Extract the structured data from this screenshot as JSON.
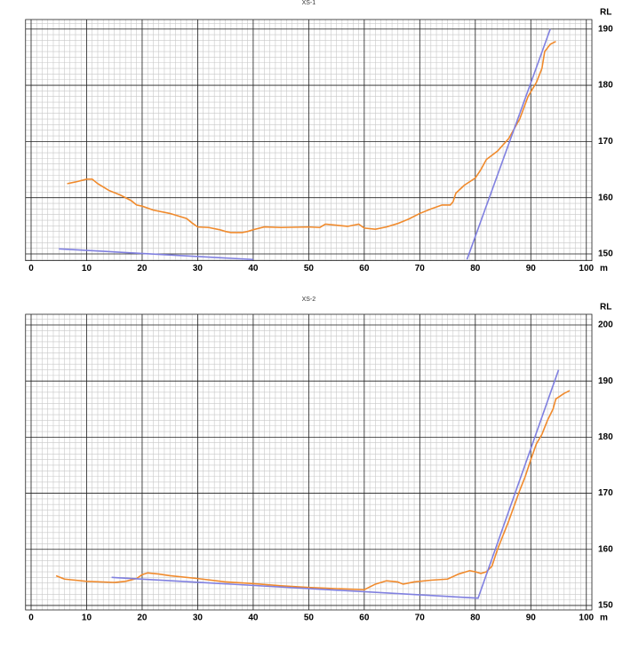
{
  "chart_data": [
    {
      "type": "line",
      "title": "XS-1",
      "xlabel": "m",
      "ylabel": "RL",
      "xlim": [
        -1,
        101
      ],
      "ylim": [
        148.8,
        191.7
      ],
      "xticks": [
        0,
        10,
        20,
        30,
        40,
        50,
        60,
        70,
        80,
        90,
        100
      ],
      "yticks": [
        150,
        160,
        170,
        180,
        190
      ],
      "grid": true,
      "minor_step": 1,
      "series": [
        {
          "color": "#f08a2c",
          "x": [
            6.5,
            8,
            10,
            11,
            12,
            14,
            16,
            18,
            19,
            20,
            22,
            25,
            28,
            29,
            30,
            32,
            34,
            35,
            36,
            38,
            39,
            40,
            42,
            45,
            50,
            52,
            53,
            55,
            57,
            59,
            60,
            62,
            64,
            66,
            68,
            70,
            72,
            74,
            75.5,
            76,
            76.5,
            78,
            80,
            81,
            82,
            84,
            86,
            88,
            89.5,
            91,
            92,
            92.5,
            93.5,
            94.5
          ],
          "values": [
            162.5,
            162.8,
            163.3,
            163.3,
            162.5,
            161.3,
            160.5,
            159.5,
            158.7,
            158.5,
            157.8,
            157.2,
            156.3,
            155.5,
            154.8,
            154.7,
            154.3,
            154.0,
            153.8,
            153.8,
            154.0,
            154.3,
            154.8,
            154.7,
            154.8,
            154.7,
            155.3,
            155.1,
            154.9,
            155.3,
            154.6,
            154.4,
            154.8,
            155.4,
            156.2,
            157.2,
            158.0,
            158.7,
            158.7,
            159.3,
            160.8,
            162.2,
            163.5,
            165.0,
            166.8,
            168.3,
            170.5,
            174.0,
            178.0,
            180.5,
            183.0,
            186.0,
            187.3,
            187.8
          ]
        },
        {
          "color": "#8080e0",
          "x": [
            5,
            40
          ],
          "values": [
            150.9,
            149.0
          ]
        },
        {
          "color": "#8080e0",
          "x": [
            78.5,
            93.5
          ],
          "values": [
            149.0,
            190.0
          ]
        }
      ]
    },
    {
      "type": "line",
      "title": "XS-2",
      "xlabel": "m",
      "ylabel": "RL",
      "xlim": [
        -1,
        101
      ],
      "ylim": [
        149.2,
        201.9
      ],
      "xticks": [
        0,
        10,
        20,
        30,
        40,
        50,
        60,
        70,
        80,
        90,
        100
      ],
      "yticks": [
        150,
        160,
        170,
        180,
        190,
        200
      ],
      "grid": true,
      "minor_step": 1,
      "series": [
        {
          "color": "#f08a2c",
          "x": [
            4.5,
            6,
            8,
            10,
            15,
            17,
            19,
            20,
            21,
            23,
            25,
            30,
            35,
            40,
            45,
            50,
            55,
            60,
            62,
            64,
            66,
            67,
            69,
            72,
            75,
            77,
            79,
            80,
            81,
            82,
            83,
            84,
            86,
            88,
            89,
            90,
            91,
            92,
            93,
            94,
            94.5,
            96,
            97
          ],
          "values": [
            155.3,
            154.7,
            154.5,
            154.3,
            154.1,
            154.3,
            154.8,
            155.5,
            155.8,
            155.6,
            155.3,
            154.8,
            154.2,
            153.9,
            153.5,
            153.2,
            153.0,
            152.8,
            153.8,
            154.4,
            154.2,
            153.8,
            154.2,
            154.5,
            154.7,
            155.6,
            156.2,
            156.0,
            155.7,
            156.0,
            157.0,
            160.0,
            165.0,
            170.5,
            173.0,
            176.0,
            178.8,
            180.5,
            183.0,
            185.0,
            186.8,
            187.8,
            188.3
          ]
        },
        {
          "color": "#8080e0",
          "x": [
            14.5,
            80.5,
            95
          ],
          "values": [
            155.0,
            151.3,
            192.0
          ]
        }
      ]
    }
  ]
}
